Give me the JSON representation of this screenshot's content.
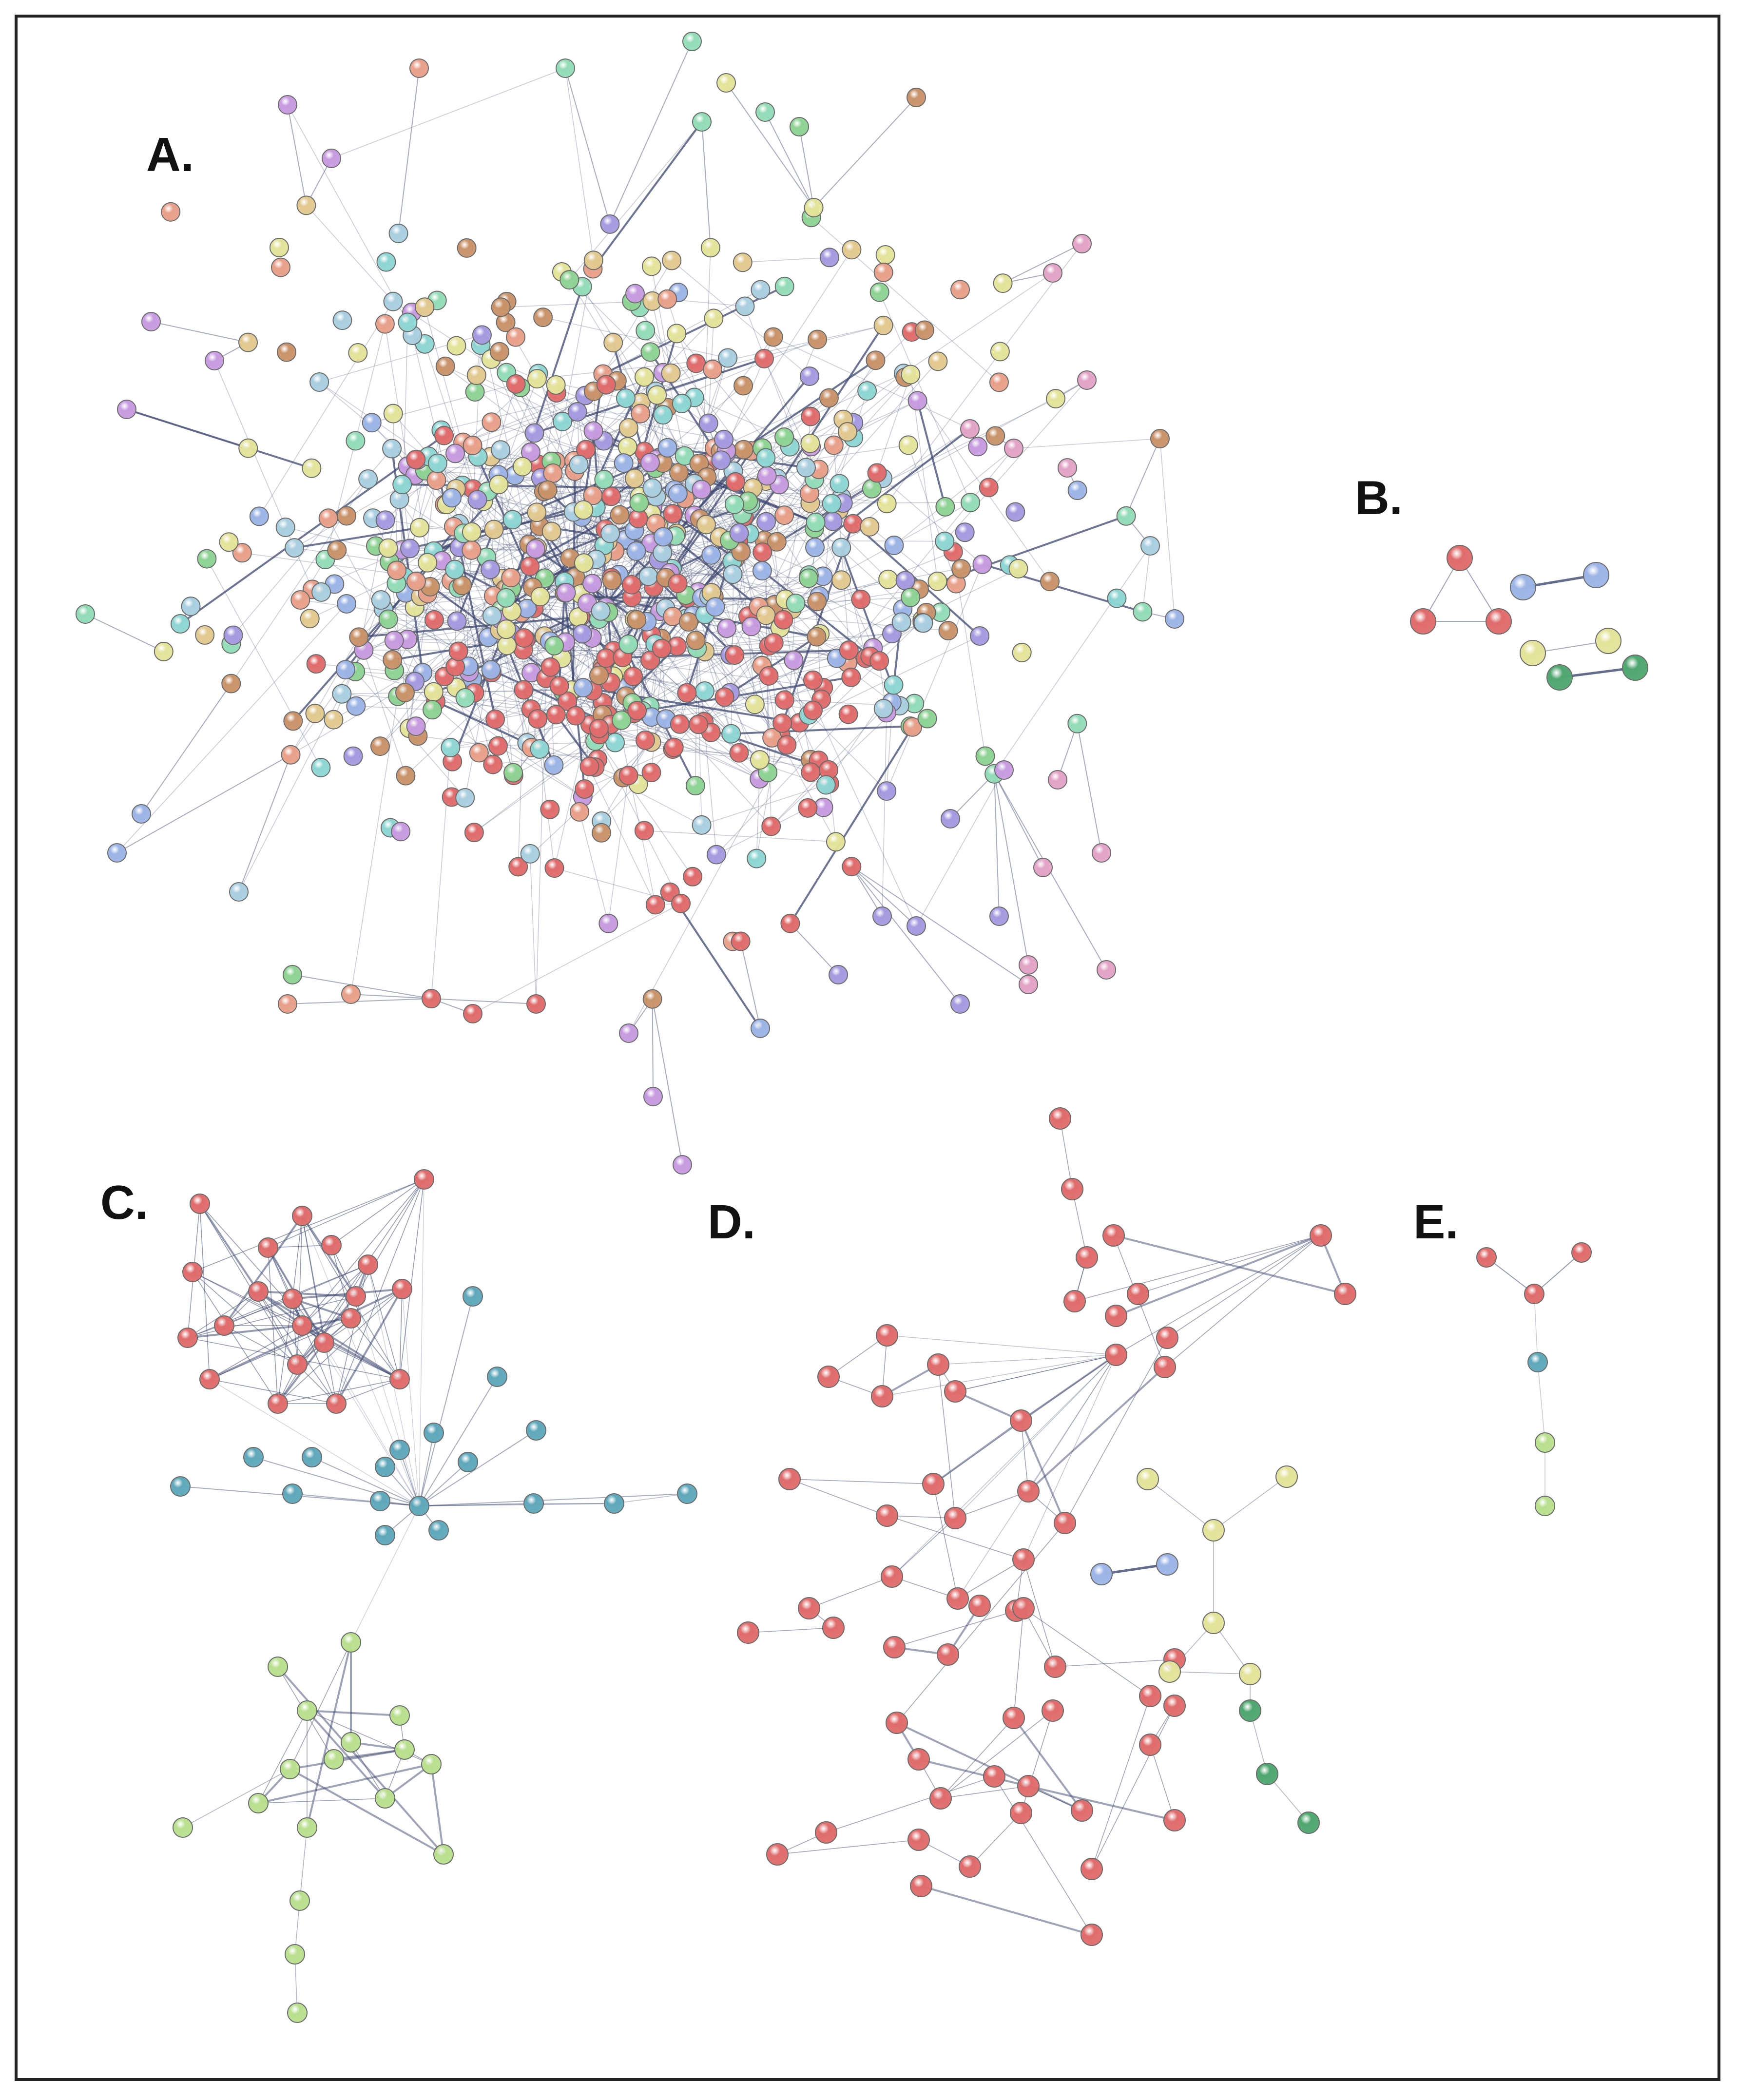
{
  "figure": {
    "panels": [
      {
        "id": "A",
        "label": "A."
      },
      {
        "id": "B",
        "label": "B."
      },
      {
        "id": "C",
        "label": "C."
      },
      {
        "id": "D",
        "label": "D."
      },
      {
        "id": "E",
        "label": "E."
      }
    ]
  },
  "node_colors": {
    "red": "#e06c6c",
    "salmon": "#e8a08a",
    "pink": "#e2a3c6",
    "violet": "#c79be0",
    "purple": "#a69ae0",
    "blue": "#9cb4e6",
    "lightblue": "#a9cfe0",
    "cyan": "#8ed6d3",
    "mint": "#93dcb7",
    "green": "#8ed394",
    "lightgreen": "#b9e08e",
    "yellow": "#e4e39a",
    "gold": "#e1c98f",
    "brown": "#c9936a",
    "teal": "#5fa8bb",
    "darkgreen": "#4fa76f"
  },
  "edge_color": "#3d4770"
}
